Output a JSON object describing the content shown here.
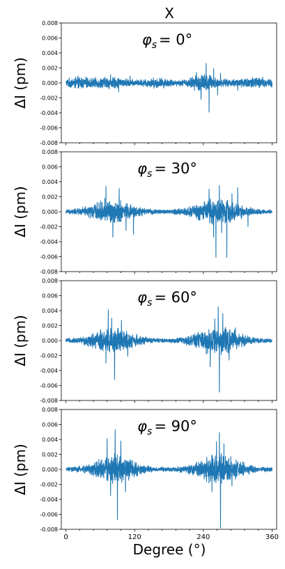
{
  "chart_data": {
    "type": "line",
    "title": "X",
    "xlabel": "Degree (°)",
    "xlim": [
      -8,
      368
    ],
    "xticks": [
      0,
      120,
      240,
      360
    ],
    "xtick_labels": [
      "0",
      "120",
      "240",
      "360"
    ],
    "ylim": [
      -0.008,
      0.008
    ],
    "yticks": [
      -0.008,
      -0.006,
      -0.004,
      -0.002,
      0.0,
      0.002,
      0.004,
      0.006,
      0.008
    ],
    "ytick_labels": [
      "-0.008",
      "-0.006",
      "-0.004",
      "-0.002",
      "0.000",
      "0.002",
      "0.004",
      "0.006",
      "0.008"
    ],
    "ylabel": "ΔI (pm)",
    "color": "#1f77b4",
    "grid": false,
    "panels": [
      {
        "annotation_prefix": "φ",
        "annotation_sub": "s",
        "annotation_value": "= 0°",
        "annotation_text": "φs = 0°",
        "envelope": [
          {
            "center": 20,
            "width": 14,
            "amp": 0.0006
          },
          {
            "center": 75,
            "width": 25,
            "amp": 0.0006
          },
          {
            "center": 160,
            "width": 20,
            "amp": 0.0005
          },
          {
            "center": 240,
            "width": 18,
            "amp": 0.0011
          },
          {
            "center": 330,
            "width": 30,
            "amp": 0.0006
          }
        ],
        "base_amp": 0.0003,
        "spikes": [
          {
            "x": 78,
            "y": 0.0011
          },
          {
            "x": 92,
            "y": -0.0012
          },
          {
            "x": 112,
            "y": 0.0009
          },
          {
            "x": 228,
            "y": 0.0014
          },
          {
            "x": 236,
            "y": -0.0022
          },
          {
            "x": 245,
            "y": 0.0026
          },
          {
            "x": 250,
            "y": -0.0039
          },
          {
            "x": 258,
            "y": 0.0019
          },
          {
            "x": 265,
            "y": -0.0016
          },
          {
            "x": 270,
            "y": 0.0013
          },
          {
            "x": 300,
            "y": -0.001
          }
        ]
      },
      {
        "annotation_prefix": "φ",
        "annotation_sub": "s",
        "annotation_value": "= 30°",
        "annotation_text": "φs = 30°",
        "envelope": [
          {
            "center": 80,
            "width": 30,
            "amp": 0.0015
          },
          {
            "center": 265,
            "width": 32,
            "amp": 0.0017
          }
        ],
        "base_amp": 0.0003,
        "spikes": [
          {
            "x": 68,
            "y": 0.0018
          },
          {
            "x": 70,
            "y": 0.0034
          },
          {
            "x": 82,
            "y": -0.0034
          },
          {
            "x": 93,
            "y": 0.0031
          },
          {
            "x": 105,
            "y": -0.0025
          },
          {
            "x": 118,
            "y": -0.003
          },
          {
            "x": 250,
            "y": 0.003
          },
          {
            "x": 258,
            "y": -0.0034
          },
          {
            "x": 262,
            "y": -0.0061
          },
          {
            "x": 268,
            "y": 0.0035
          },
          {
            "x": 272,
            "y": -0.0028
          },
          {
            "x": 281,
            "y": -0.0061
          },
          {
            "x": 290,
            "y": 0.0024
          },
          {
            "x": 300,
            "y": 0.0032
          },
          {
            "x": 318,
            "y": -0.002
          }
        ]
      },
      {
        "annotation_prefix": "φ",
        "annotation_sub": "s",
        "annotation_value": "= 60°",
        "annotation_text": "φs = 60°",
        "envelope": [
          {
            "center": 82,
            "width": 28,
            "amp": 0.0018
          },
          {
            "center": 265,
            "width": 30,
            "amp": 0.0019
          }
        ],
        "base_amp": 0.0003,
        "spikes": [
          {
            "x": 70,
            "y": -0.003
          },
          {
            "x": 74,
            "y": 0.0041
          },
          {
            "x": 80,
            "y": 0.003
          },
          {
            "x": 85,
            "y": -0.0052
          },
          {
            "x": 97,
            "y": 0.0027
          },
          {
            "x": 108,
            "y": -0.0021
          },
          {
            "x": 252,
            "y": -0.0035
          },
          {
            "x": 260,
            "y": 0.0029
          },
          {
            "x": 266,
            "y": 0.0045
          },
          {
            "x": 268,
            "y": -0.0069
          },
          {
            "x": 274,
            "y": 0.0036
          },
          {
            "x": 285,
            "y": -0.0026
          },
          {
            "x": 296,
            "y": 0.0017
          }
        ]
      },
      {
        "annotation_prefix": "φ",
        "annotation_sub": "s",
        "annotation_value": "= 90°",
        "annotation_text": "φs = 90°",
        "envelope": [
          {
            "center": 85,
            "width": 28,
            "amp": 0.002
          },
          {
            "center": 267,
            "width": 30,
            "amp": 0.002
          }
        ],
        "base_amp": 0.0003,
        "spikes": [
          {
            "x": 72,
            "y": 0.0041
          },
          {
            "x": 78,
            "y": -0.0035
          },
          {
            "x": 86,
            "y": 0.0053
          },
          {
            "x": 90,
            "y": -0.0067
          },
          {
            "x": 96,
            "y": 0.0038
          },
          {
            "x": 104,
            "y": -0.003
          },
          {
            "x": 255,
            "y": -0.003
          },
          {
            "x": 263,
            "y": 0.0037
          },
          {
            "x": 268,
            "y": 0.0049
          },
          {
            "x": 270,
            "y": -0.0078
          },
          {
            "x": 276,
            "y": 0.0034
          },
          {
            "x": 290,
            "y": -0.0022
          }
        ]
      }
    ]
  }
}
